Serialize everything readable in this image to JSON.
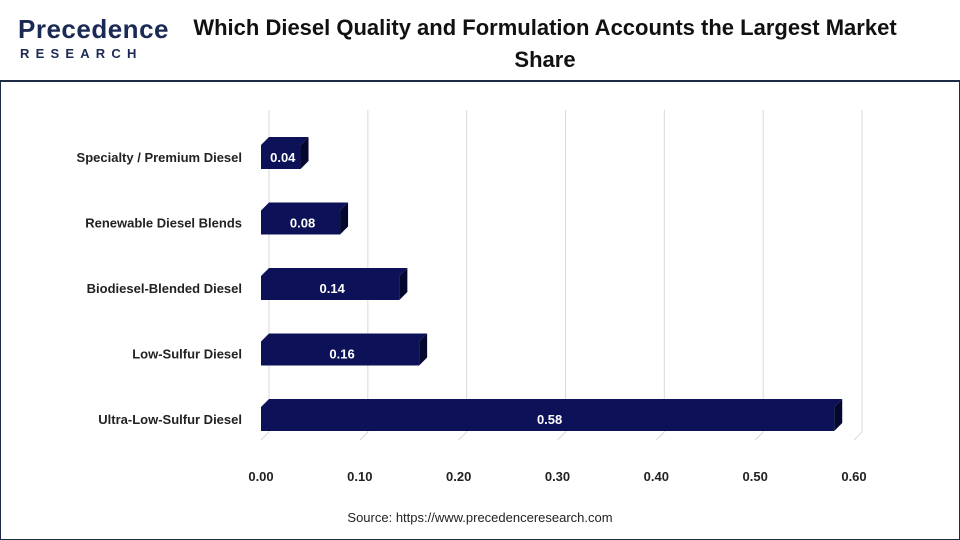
{
  "brand": {
    "logo_line1": "Precedence",
    "logo_line2": "RESEARCH",
    "accent": "#1b2a55"
  },
  "title": "Which Diesel Quality and Formulation Accounts the Largest Market Share",
  "source": "Source: https://www.precedenceresearch.com",
  "chart_data": {
    "type": "bar",
    "orientation": "horizontal",
    "categories": [
      "Specialty / Premium Diesel",
      "Renewable Diesel Blends",
      "Biodiesel-Blended Diesel",
      "Low-Sulfur Diesel",
      "Ultra-Low-Sulfur Diesel"
    ],
    "values": [
      0.04,
      0.08,
      0.14,
      0.16,
      0.58
    ],
    "value_labels": [
      "0.04",
      "0.08",
      "0.14",
      "0.16",
      "0.58"
    ],
    "xlim": [
      0,
      0.6
    ],
    "xticks": [
      0,
      0.1,
      0.2,
      0.3,
      0.4,
      0.5,
      0.6
    ],
    "xtick_labels": [
      "0.00",
      "0.10",
      "0.20",
      "0.30",
      "0.40",
      "0.50",
      "0.60"
    ],
    "grid": "vertical",
    "bar_color": "#0d1258",
    "bar_side_color": "#05082e",
    "grid_color": "#d9d9d9"
  }
}
